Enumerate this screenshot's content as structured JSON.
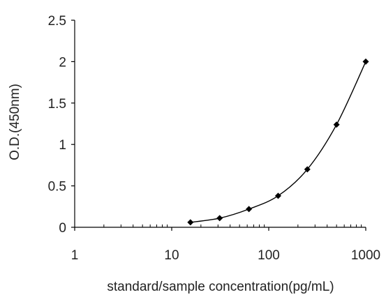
{
  "chart_data": {
    "type": "scatter",
    "xlabel": "standard/sample concentration(pg/mL)",
    "ylabel": "O.D.(450nm)",
    "xscale": "log",
    "xlim": [
      1,
      1000
    ],
    "ylim": [
      0,
      2.5
    ],
    "x_ticks": [
      "1",
      "10",
      "100",
      "1000"
    ],
    "y_ticks": [
      "0",
      "0.5",
      "1",
      "1.5",
      "2",
      "2.5"
    ],
    "grid": false,
    "legend": "none",
    "marker": "diamond",
    "line": "smooth",
    "line_color": "#000000",
    "series": [
      {
        "x": [
          15.6,
          31.2,
          62.5,
          125,
          250,
          500,
          1000
        ],
        "y": [
          0.06,
          0.11,
          0.22,
          0.38,
          0.7,
          1.24,
          2.0
        ]
      }
    ]
  }
}
